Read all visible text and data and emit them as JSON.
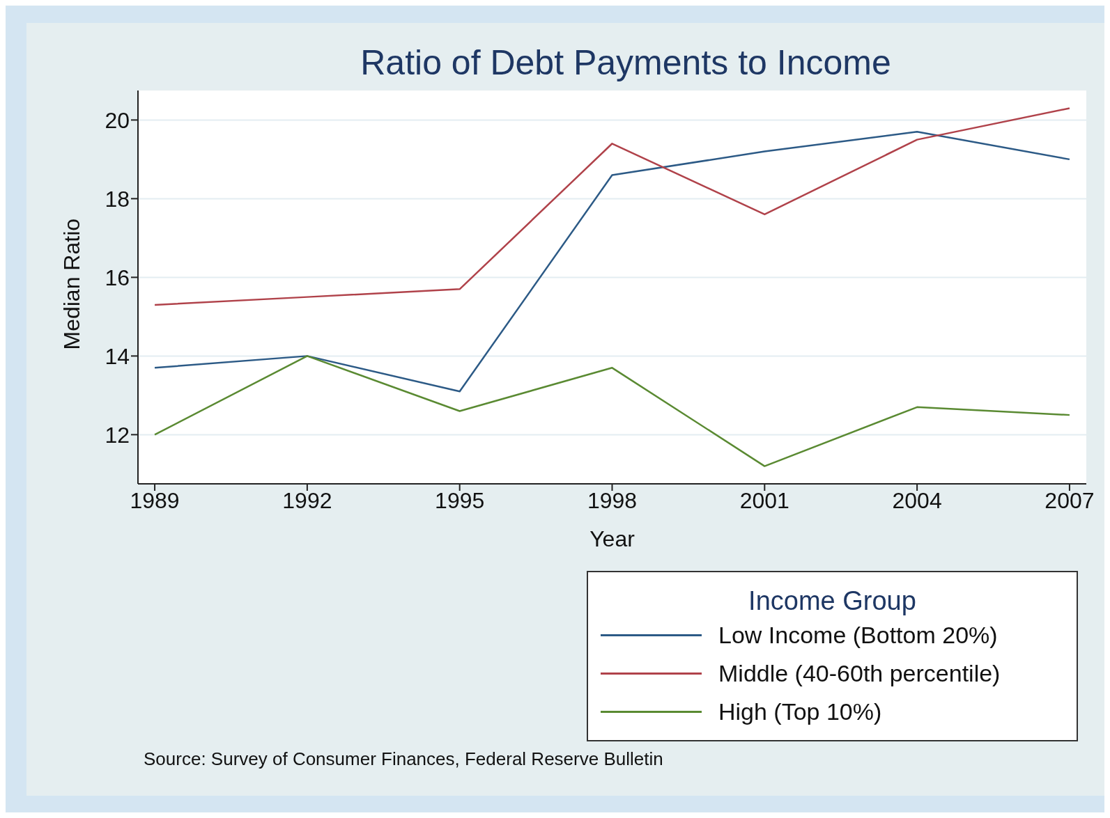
{
  "chart_data": {
    "type": "line",
    "title": "Ratio of Debt Payments to Income",
    "xlabel": "Year",
    "ylabel": "Median Ratio",
    "legend_title": "Income Group",
    "x": [
      1989,
      1992,
      1995,
      1998,
      2001,
      2004,
      2007
    ],
    "series": [
      {
        "name": "Low Income (Bottom 20%)",
        "color": "#2c5a86",
        "values": [
          13.7,
          14.0,
          13.1,
          18.6,
          19.2,
          19.7,
          19.0
        ]
      },
      {
        "name": "Middle (40-60th percentile)",
        "color": "#b0424a",
        "values": [
          15.3,
          15.5,
          15.7,
          19.4,
          17.6,
          19.5,
          20.3
        ]
      },
      {
        "name": "High (Top 10%)",
        "color": "#5a8a32",
        "values": [
          12.0,
          14.0,
          12.6,
          13.7,
          11.2,
          12.7,
          12.5
        ]
      }
    ],
    "xlim": [
      1988.67,
      2007.33
    ],
    "xticks": [
      1989,
      1992,
      1995,
      1998,
      2001,
      2004,
      2007
    ],
    "ylim": [
      10.75,
      20.75
    ],
    "yticks": [
      12,
      14,
      16,
      18,
      20
    ],
    "grid": "y",
    "legend": "bottom right",
    "marker": "none",
    "line_style": "solid",
    "annotations": [
      "Source: Survey of Consumer Finances, Federal Reserve Bulletin"
    ]
  }
}
